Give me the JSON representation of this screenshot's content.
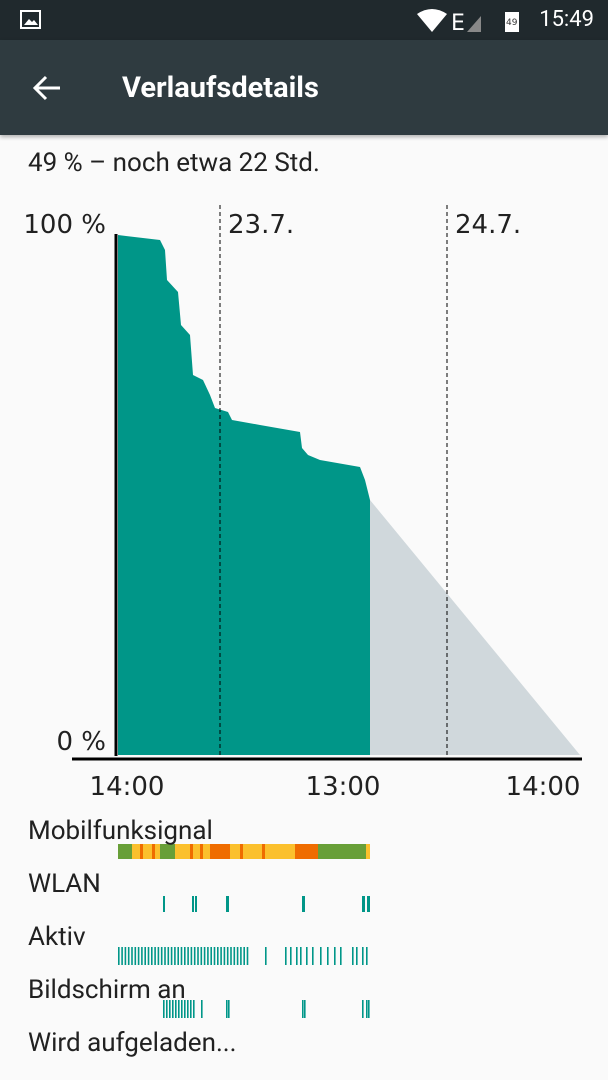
{
  "status_bar": {
    "time": "15:49",
    "battery_level": "49"
  },
  "toolbar": {
    "title": "Verlaufsdetails"
  },
  "summary": "49 % – noch etwa 22 Std.",
  "graph": {
    "y_top": "100 %",
    "y_bottom": "0 %",
    "day_markers": [
      "23.7.",
      "24.7."
    ],
    "x_labels": [
      "14:00",
      "13:00",
      "14:00"
    ]
  },
  "rows": [
    "Mobilfunksignal",
    "WLAN",
    "Aktiv",
    "Bildschirm an",
    "Wird aufgeladen..."
  ]
}
